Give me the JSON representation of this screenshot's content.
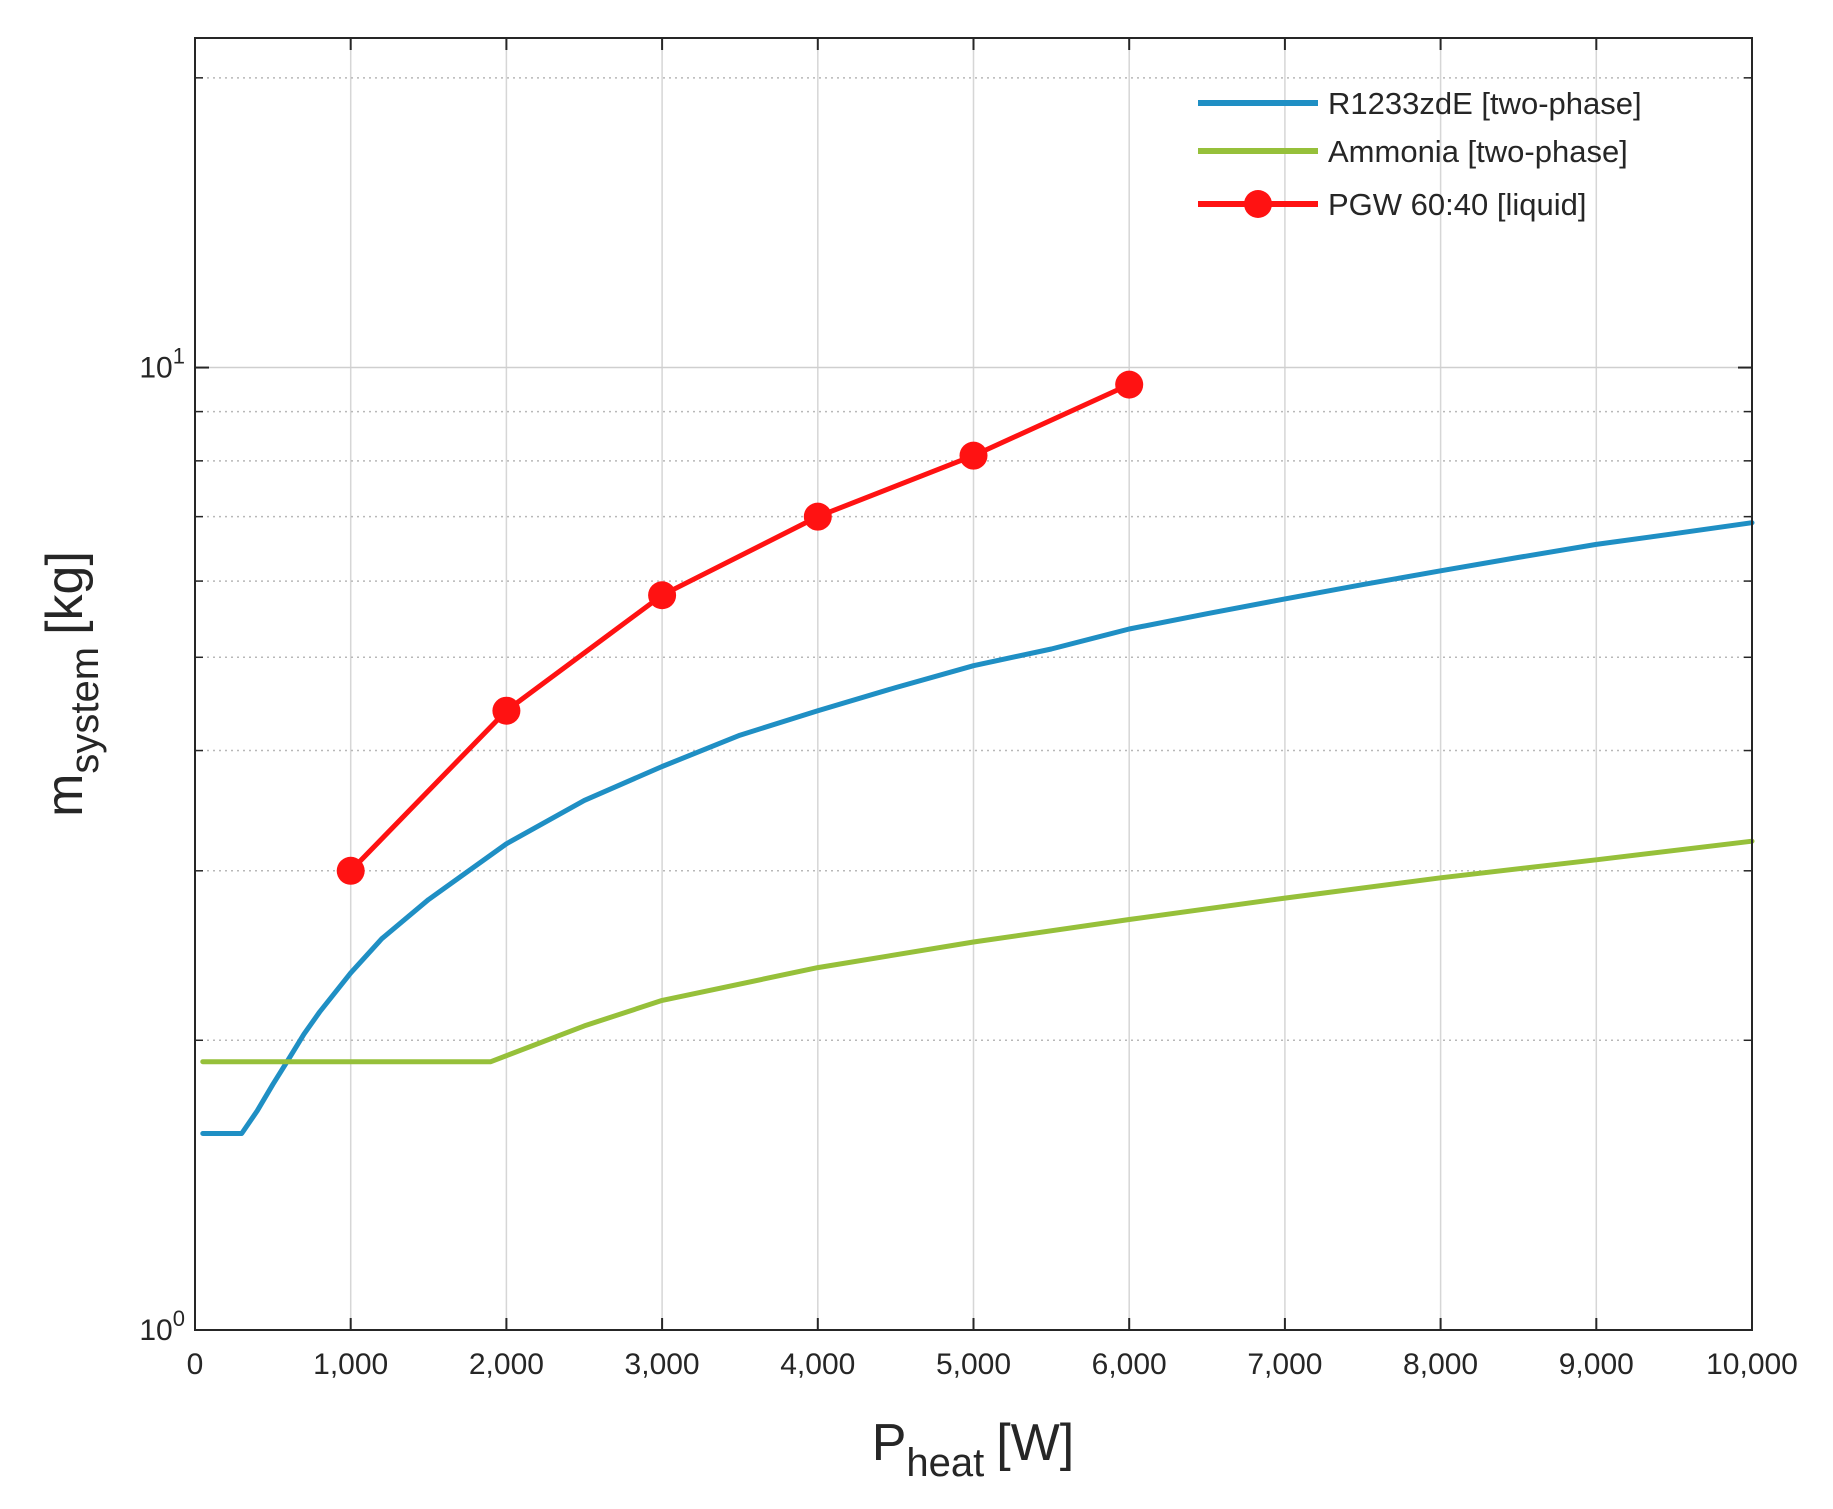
{
  "chart_data": {
    "type": "line",
    "title": "",
    "xlabel": {
      "main": "P",
      "sub": "heat",
      "unit": "[W]"
    },
    "ylabel": {
      "main": "m",
      "sub": "system",
      "unit": "[kg]"
    },
    "xlim": [
      0,
      10000
    ],
    "ylim": [
      1,
      22
    ],
    "yscale": "log",
    "grid": true,
    "legend_position": "top-right",
    "x_ticks": [
      0,
      1000,
      2000,
      3000,
      4000,
      5000,
      6000,
      7000,
      8000,
      9000,
      10000
    ],
    "x_tick_labels": [
      "0",
      "1,000",
      "2,000",
      "3,000",
      "4,000",
      "5,000",
      "6,000",
      "7,000",
      "8,000",
      "9,000",
      "10,000"
    ],
    "y_ticks": [
      {
        "base": "10",
        "exp": "0",
        "value": 1
      },
      {
        "base": "10",
        "exp": "1",
        "value": 10
      }
    ],
    "y_minor_ticks": [
      2,
      3,
      4,
      5,
      6,
      7,
      8,
      9,
      20
    ],
    "series": [
      {
        "name": "R1233zdE [two-phase]",
        "color": "#1f8fc4",
        "marker": "none",
        "x": [
          50,
          300,
          400,
          500,
          600,
          700,
          800,
          1000,
          1200,
          1500,
          2000,
          2500,
          3000,
          3500,
          4000,
          4500,
          5000,
          5500,
          6000,
          6500,
          7000,
          7500,
          8000,
          8500,
          9000,
          9500,
          10000
        ],
        "y": [
          1.6,
          1.6,
          1.69,
          1.8,
          1.91,
          2.03,
          2.14,
          2.35,
          2.55,
          2.8,
          3.2,
          3.55,
          3.85,
          4.15,
          4.4,
          4.65,
          4.9,
          5.1,
          5.35,
          5.55,
          5.75,
          5.95,
          6.15,
          6.35,
          6.55,
          6.72,
          6.9
        ]
      },
      {
        "name": "Ammonia [two-phase]",
        "color": "#96c03a",
        "marker": "none",
        "x": [
          50,
          1900,
          2500,
          3000,
          4000,
          5000,
          6000,
          7000,
          8000,
          9000,
          10000
        ],
        "y": [
          1.9,
          1.9,
          2.07,
          2.2,
          2.38,
          2.53,
          2.67,
          2.81,
          2.95,
          3.08,
          3.22
        ]
      },
      {
        "name": "PGW 60:40 [liquid]",
        "color": "#ff1212",
        "marker": "circle",
        "x": [
          1000,
          2000,
          3000,
          4000,
          5000,
          6000
        ],
        "y": [
          3.0,
          4.4,
          5.8,
          7.0,
          8.1,
          9.6
        ]
      }
    ]
  }
}
